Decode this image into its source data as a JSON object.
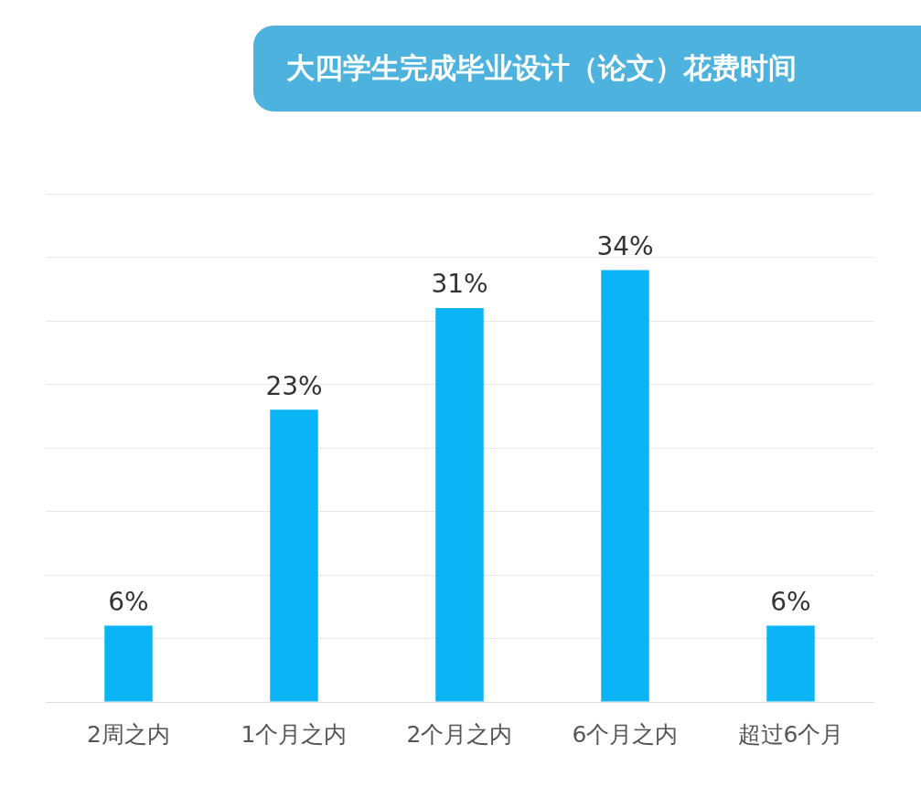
{
  "chart_data": {
    "type": "bar",
    "title": "大四学生完成毕业设计（论文）花费时间",
    "categories": [
      "2周之内",
      "1个月之内",
      "2个月之内",
      "6个月之内",
      "超过6个月"
    ],
    "values": [
      6,
      23,
      31,
      34,
      6
    ],
    "color": "#0bb4f5",
    "ylim": [
      0,
      40
    ],
    "yticks": [
      0,
      5,
      10,
      15,
      20,
      25,
      30,
      35,
      40
    ],
    "tick_labels": "x",
    "grid": "y",
    "data_labels": true,
    "value_labels": [
      "6%",
      "23%",
      "31%",
      "34%",
      "6%"
    ]
  }
}
